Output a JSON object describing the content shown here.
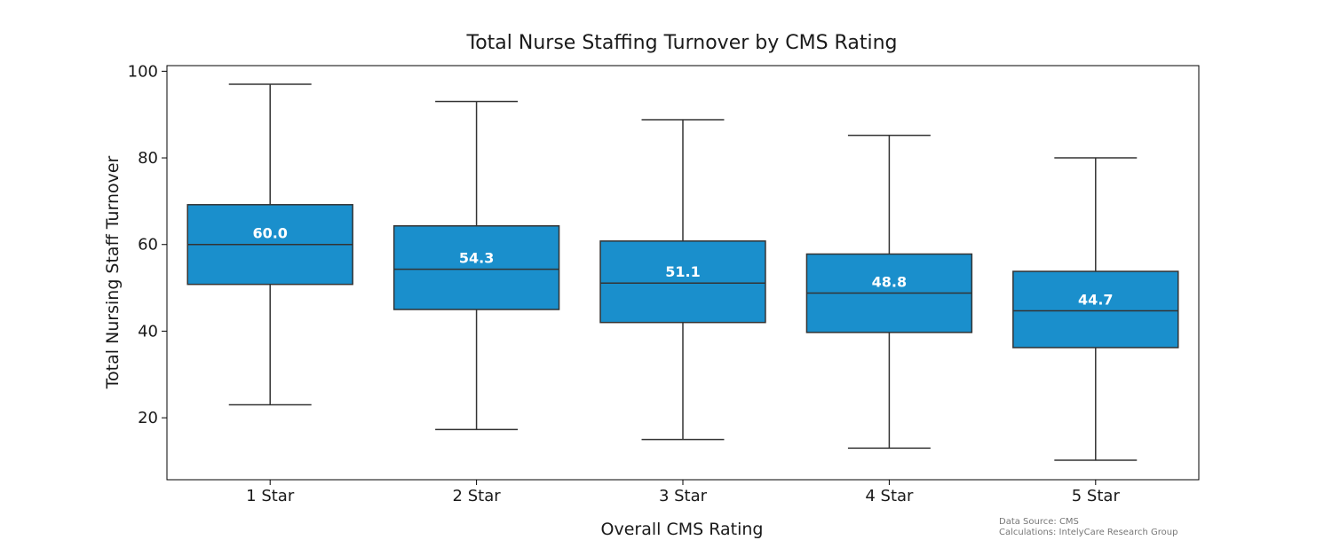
{
  "chart_data": {
    "type": "box",
    "title": "Total Nurse Staffing Turnover by CMS Rating",
    "xlabel": "Overall CMS Rating",
    "ylabel": "Total Nursing Staff Turnover",
    "categories": [
      "1 Star",
      "2 Star",
      "3 Star",
      "4 Star",
      "5 Star"
    ],
    "yticks": [
      20,
      40,
      60,
      80,
      100
    ],
    "ylim": [
      5.7,
      101.3
    ],
    "grid": false,
    "boxes": [
      {
        "category": "1 Star",
        "whisker_low": 23.0,
        "q1": 50.8,
        "median": 60.0,
        "q3": 69.2,
        "whisker_high": 97.0,
        "label": "60.0"
      },
      {
        "category": "2 Star",
        "whisker_low": 17.3,
        "q1": 45.0,
        "median": 54.3,
        "q3": 64.3,
        "whisker_high": 93.0,
        "label": "54.3"
      },
      {
        "category": "3 Star",
        "whisker_low": 15.0,
        "q1": 42.0,
        "median": 51.1,
        "q3": 60.8,
        "whisker_high": 88.8,
        "label": "51.1"
      },
      {
        "category": "4 Star",
        "whisker_low": 13.0,
        "q1": 39.7,
        "median": 48.8,
        "q3": 57.8,
        "whisker_high": 85.2,
        "label": "48.8"
      },
      {
        "category": "5 Star",
        "whisker_low": 10.2,
        "q1": 36.2,
        "median": 44.7,
        "q3": 53.8,
        "whisker_high": 80.0,
        "label": "44.7"
      }
    ],
    "colors": {
      "box_fill": "#1a8fcc",
      "line": "#333333"
    }
  },
  "footnote": {
    "line1": "Data Source: CMS",
    "line2": "Calculations: IntelyCare Research Group"
  }
}
